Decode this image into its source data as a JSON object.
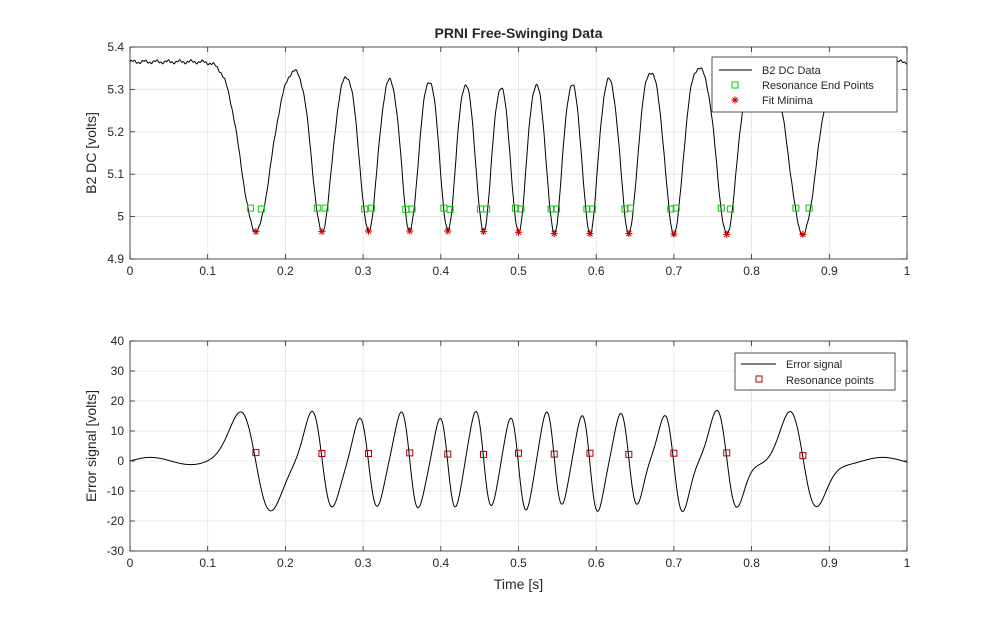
{
  "chart_data": [
    {
      "type": "line",
      "title": "PRNI Free-Swinging Data",
      "xlabel": "",
      "ylabel": "B2 DC [volts]",
      "xlim": [
        0,
        1
      ],
      "ylim": [
        4.9,
        5.4
      ],
      "xticks": [
        "0",
        "0.1",
        "0.2",
        "0.3",
        "0.4",
        "0.5",
        "0.6",
        "0.7",
        "0.8",
        "0.9",
        "1"
      ],
      "yticks": [
        "4.9",
        "5",
        "5.1",
        "5.2",
        "5.3",
        "5.4"
      ],
      "grid": true,
      "legend_position": "top-right",
      "baseline": 5.365,
      "dips": [
        {
          "center": 0.162,
          "min": 4.965,
          "width": 0.027
        },
        {
          "center": 0.247,
          "min": 4.965,
          "width": 0.018
        },
        {
          "center": 0.307,
          "min": 4.966,
          "width": 0.016
        },
        {
          "center": 0.36,
          "min": 4.966,
          "width": 0.015
        },
        {
          "center": 0.409,
          "min": 4.966,
          "width": 0.014
        },
        {
          "center": 0.455,
          "min": 4.965,
          "width": 0.014
        },
        {
          "center": 0.5,
          "min": 4.963,
          "width": 0.014
        },
        {
          "center": 0.546,
          "min": 4.96,
          "width": 0.014
        },
        {
          "center": 0.592,
          "min": 4.96,
          "width": 0.014
        },
        {
          "center": 0.642,
          "min": 4.96,
          "width": 0.015
        },
        {
          "center": 0.7,
          "min": 4.959,
          "width": 0.016
        },
        {
          "center": 0.768,
          "min": 4.958,
          "width": 0.018
        },
        {
          "center": 0.866,
          "min": 4.958,
          "width": 0.024
        }
      ],
      "series": [
        {
          "name": "B2 DC Data",
          "style": "line",
          "color": "#000000"
        },
        {
          "name": "Resonance End Points",
          "style": "square",
          "color": "#00cc00",
          "x": [
            0.155,
            0.169,
            0.241,
            0.251,
            0.302,
            0.311,
            0.355,
            0.363,
            0.404,
            0.412,
            0.451,
            0.459,
            0.496,
            0.503,
            0.542,
            0.549,
            0.588,
            0.595,
            0.637,
            0.644,
            0.696,
            0.703,
            0.761,
            0.773,
            0.857,
            0.874
          ],
          "y": [
            5.02,
            5.018,
            5.02,
            5.02,
            5.018,
            5.02,
            5.017,
            5.018,
            5.02,
            5.017,
            5.018,
            5.018,
            5.02,
            5.018,
            5.018,
            5.018,
            5.018,
            5.018,
            5.018,
            5.02,
            5.018,
            5.02,
            5.02,
            5.018,
            5.02,
            5.02
          ]
        },
        {
          "name": "Fit Minima",
          "style": "asterisk",
          "color": "#cc0000",
          "x": [
            0.162,
            0.247,
            0.307,
            0.36,
            0.409,
            0.455,
            0.5,
            0.546,
            0.592,
            0.642,
            0.7,
            0.768,
            0.866
          ],
          "y": [
            4.965,
            4.965,
            4.966,
            4.966,
            4.966,
            4.965,
            4.963,
            4.96,
            4.96,
            4.96,
            4.959,
            4.958,
            4.958
          ]
        }
      ]
    },
    {
      "type": "line",
      "title": "",
      "xlabel": "Time [s]",
      "ylabel": "Error signal [volts]",
      "xlim": [
        0,
        1
      ],
      "ylim": [
        -30,
        40
      ],
      "xticks": [
        "0",
        "0.1",
        "0.2",
        "0.3",
        "0.4",
        "0.5",
        "0.6",
        "0.7",
        "0.8",
        "0.9",
        "1"
      ],
      "yticks": [
        "-30",
        "-20",
        "-10",
        "0",
        "10",
        "20",
        "30",
        "40"
      ],
      "grid": true,
      "legend_position": "top-right",
      "series": [
        {
          "name": "Error signal",
          "style": "line",
          "color": "#000000"
        },
        {
          "name": "Resonance points",
          "style": "square",
          "color": "#aa0000",
          "x": [
            0.162,
            0.247,
            0.307,
            0.36,
            0.409,
            0.455,
            0.5,
            0.546,
            0.592,
            0.642,
            0.7,
            0.768,
            0.866
          ],
          "y": [
            2.8,
            2.5,
            2.5,
            2.7,
            2.3,
            2.2,
            2.6,
            2.3,
            2.6,
            2.2,
            2.6,
            2.7,
            1.8
          ]
        }
      ]
    }
  ]
}
